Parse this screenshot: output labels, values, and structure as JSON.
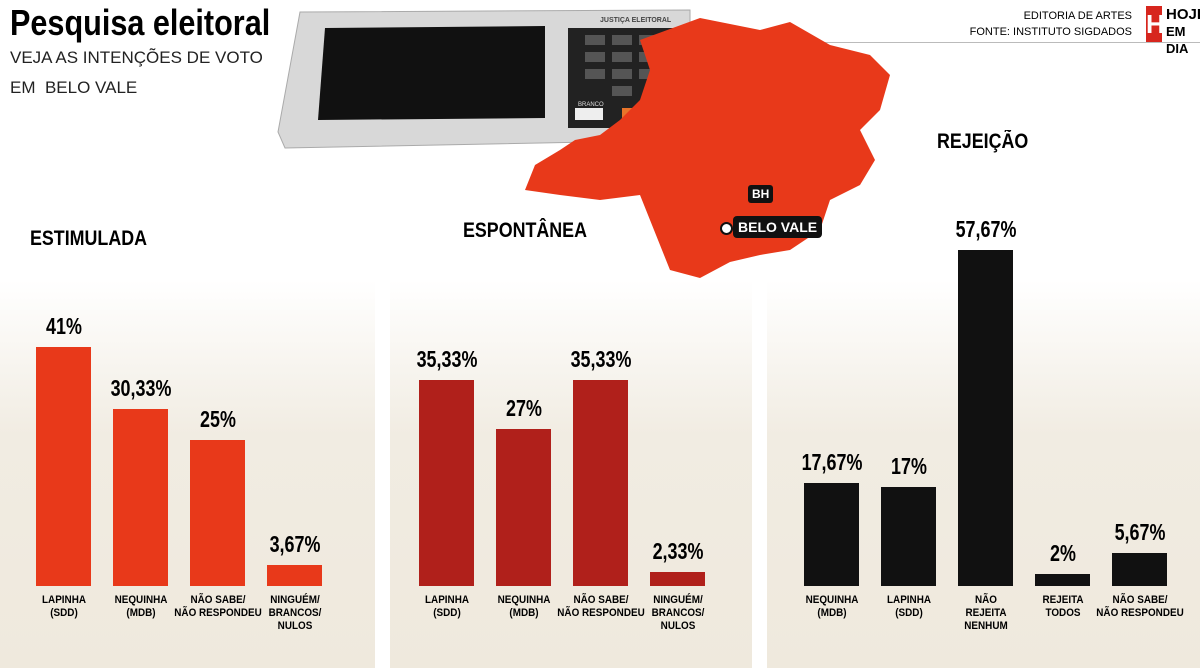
{
  "header": {
    "title": "Pesquisa eleitoral",
    "subtitle": [
      "VEJA AS INTENÇÕES DE VOTO",
      "EM  BELO VALE"
    ],
    "credits": [
      "EDITORIA DE ARTES",
      "FONTE: INSTITUTO SIGDADOS"
    ],
    "logo": [
      "H",
      "HOJE",
      "EM DIA"
    ]
  },
  "ballot_box": {
    "label": "JUSTIÇA ELEITORAL",
    "keys": [
      "BRANCO"
    ]
  },
  "map": {
    "labels": [
      "BH",
      "BELO VALE"
    ]
  },
  "chart_data": [
    {
      "type": "bar",
      "title": "ESTIMULADA",
      "color": "#e8391a",
      "categories": [
        "LAPINHA\n(SDD)",
        "NEQUINHA\n(MDB)",
        "NÃO SABE/\nNÃO RESPONDEU",
        "NINGUÉM/\nBRANCOS/\nNULOS"
      ],
      "values": [
        41,
        30.33,
        25,
        3.67
      ],
      "value_labels": [
        "41%",
        "30,33%",
        "25%",
        "3,67%"
      ]
    },
    {
      "type": "bar",
      "title": "ESPONTÂNEA",
      "color": "#b0201b",
      "categories": [
        "LAPINHA\n(SDD)",
        "NEQUINHA\n(MDB)",
        "NÃO SABE/\nNÃO RESPONDEU",
        "NINGUÉM/\nBRANCOS/\nNULOS"
      ],
      "values": [
        35.33,
        27,
        35.33,
        2.33
      ],
      "value_labels": [
        "35,33%",
        "27%",
        "35,33%",
        "2,33%"
      ]
    },
    {
      "type": "bar",
      "title": "REJEIÇÃO",
      "color": "#111111",
      "categories": [
        "NEQUINHA\n(MDB)",
        "LAPINHA\n(SDD)",
        "NÃO\nREJEITA\nNENHUM",
        "REJEITA\nTODOS",
        "NÃO SABE/\nNÃO RESPONDEU"
      ],
      "values": [
        17.67,
        17,
        57.67,
        2,
        5.67
      ],
      "value_labels": [
        "17,67%",
        "17%",
        "57,67%",
        "2%",
        "5,67%"
      ]
    }
  ]
}
